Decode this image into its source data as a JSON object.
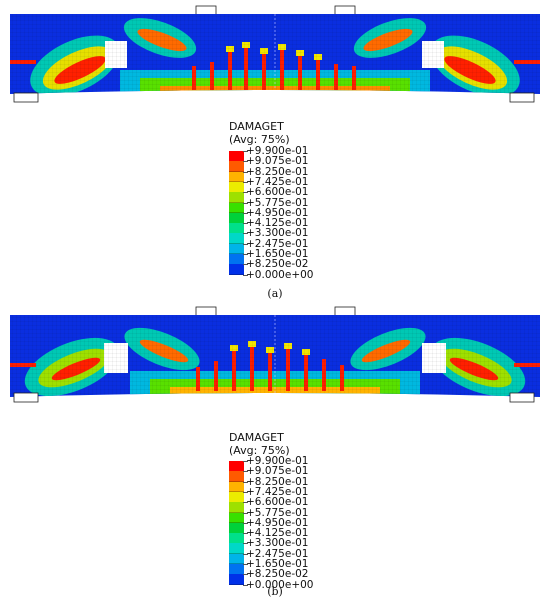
{
  "figure": {
    "panels": [
      {
        "id": "a",
        "caption": "(a)",
        "legend_title": "DAMAGET",
        "legend_subtitle": "(Avg: 75%)",
        "contour_labels": [
          "+9.900e-01",
          "+9.075e-01",
          "+8.250e-01",
          "+7.425e-01",
          "+6.600e-01",
          "+5.775e-01",
          "+4.950e-01",
          "+4.125e-01",
          "+3.300e-01",
          "+2.475e-01",
          "+1.650e-01",
          "+8.250e-02",
          "+0.000e+00"
        ]
      },
      {
        "id": "b",
        "caption": "(b)",
        "legend_title": "DAMAGET",
        "legend_subtitle": "(Avg: 75%)",
        "contour_labels": [
          "+9.900e-01",
          "+9.075e-01",
          "+8.250e-01",
          "+7.425e-01",
          "+6.600e-01",
          "+5.775e-01",
          "+4.950e-01",
          "+4.125e-01",
          "+3.300e-01",
          "+2.475e-01",
          "+1.650e-01",
          "+8.250e-02",
          "+0.000e+00"
        ]
      }
    ],
    "contour_colors": [
      "#ff0000",
      "#ff5a00",
      "#ffb300",
      "#ecec00",
      "#9ee000",
      "#38e000",
      "#00d13b",
      "#00e08a",
      "#00d8c8",
      "#00b4e8",
      "#0072f0",
      "#0030e8"
    ]
  }
}
